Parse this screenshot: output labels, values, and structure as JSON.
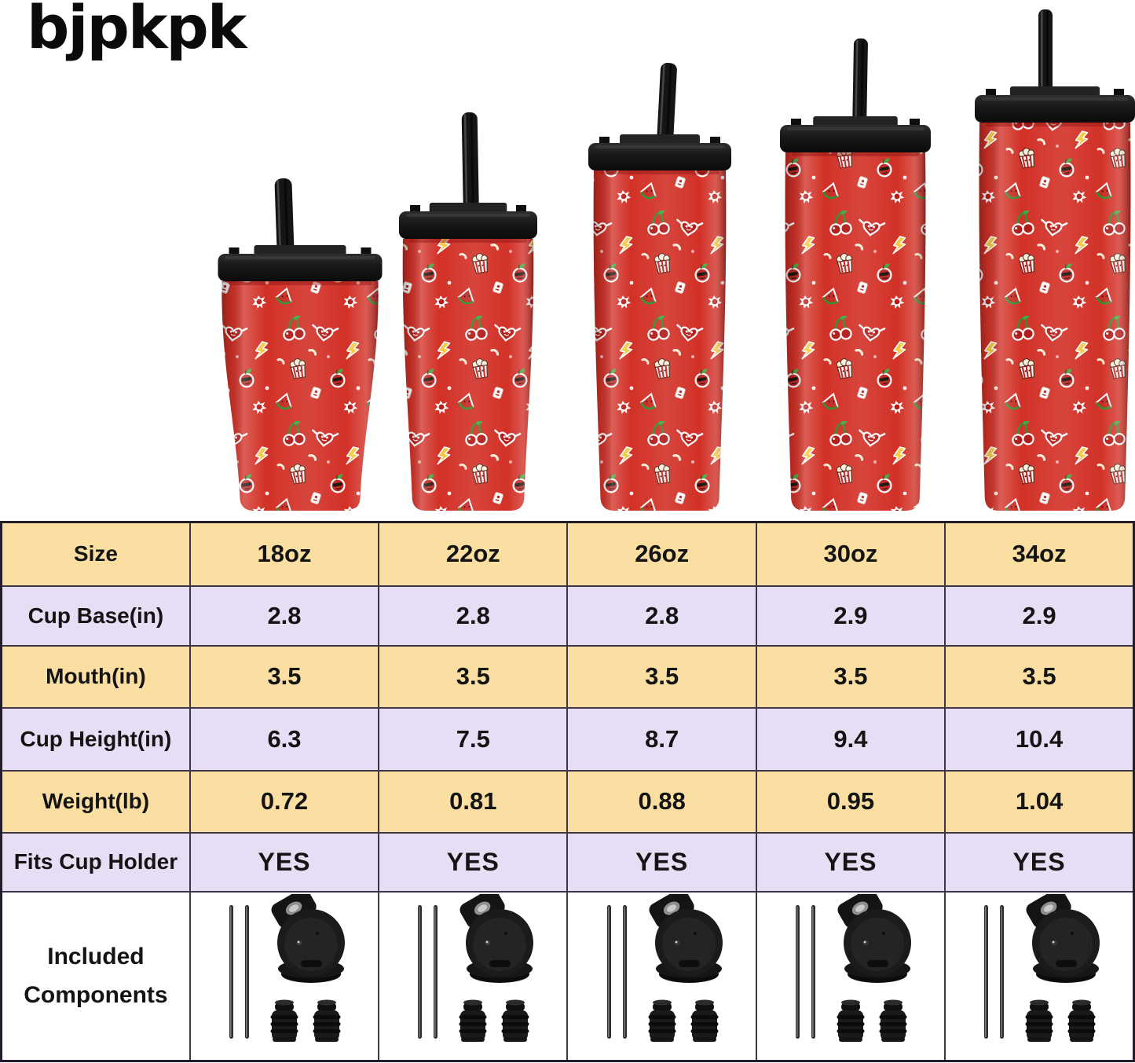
{
  "brand": {
    "logo_text": "bjpkpk"
  },
  "spec_table": {
    "header": {
      "label": "Size",
      "sizes": [
        "18oz",
        "22oz",
        "26oz",
        "30oz",
        "34oz"
      ]
    },
    "rows": [
      {
        "label": "Cup Base(in)",
        "values": [
          "2.8",
          "2.8",
          "2.8",
          "2.9",
          "2.9"
        ]
      },
      {
        "label": "Mouth(in)",
        "values": [
          "3.5",
          "3.5",
          "3.5",
          "3.5",
          "3.5"
        ]
      },
      {
        "label": "Cup Height(in)",
        "values": [
          "6.3",
          "7.5",
          "8.7",
          "9.4",
          "10.4"
        ]
      },
      {
        "label": "Weight(lb)",
        "values": [
          "0.72",
          "0.81",
          "0.88",
          "0.95",
          "1.04"
        ]
      },
      {
        "label": "Fits Cup Holder",
        "values": [
          "YES",
          "YES",
          "YES",
          "YES",
          "YES"
        ]
      }
    ],
    "components_row": {
      "label_line1": "Included",
      "label_line2": "Components",
      "icons": [
        "two-straws-icon",
        "flip-lid-icon",
        "two-stoppers-icon"
      ]
    }
  },
  "tumblers": {
    "count": 5,
    "sizes": [
      "18oz",
      "22oz",
      "26oz",
      "30oz",
      "34oz"
    ]
  },
  "colors": {
    "header_bg": "#fbdfa2",
    "alt_row_bg": "#e7def6",
    "grid_border": "#3e3547",
    "cup_red": "#d23127",
    "lid_black": "#161616",
    "background": "#ffffff"
  }
}
